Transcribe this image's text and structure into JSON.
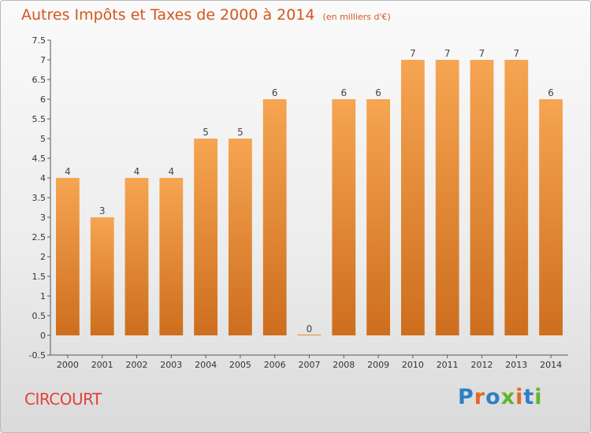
{
  "header": {
    "title": "Autres Impôts et Taxes de 2000 à 2014",
    "unit": "(en milliers d'€)"
  },
  "footer": {
    "commune": "CIRCOURT",
    "logo": "Proxiti"
  },
  "colors": {
    "title": "#d4571e",
    "commune": "#e0433f",
    "bar_top": "#f6a552",
    "bar_bottom": "#cd6e1e",
    "logo_letters": [
      "#2f7fc4",
      "#e3672a",
      "#2f7fc4",
      "#62b32e",
      "#e3672a",
      "#2f7fc4",
      "#62b32e"
    ]
  },
  "chart_data": {
    "type": "bar",
    "categories": [
      "2000",
      "2001",
      "2002",
      "2003",
      "2004",
      "2005",
      "2006",
      "2007",
      "2008",
      "2009",
      "2010",
      "2011",
      "2012",
      "2013",
      "2014"
    ],
    "values": [
      4,
      3,
      4,
      4,
      5,
      5,
      6,
      0,
      6,
      6,
      7,
      7,
      7,
      7,
      6
    ],
    "value_labels": [
      "4",
      "3",
      "4",
      "4",
      "5",
      "5",
      "6",
      "0",
      "6",
      "6",
      "7",
      "7",
      "7",
      "7",
      "6"
    ],
    "yticks": [
      "-0.5",
      "0",
      "0.5",
      "1",
      "1.5",
      "2",
      "2.5",
      "3",
      "3.5",
      "4",
      "4.5",
      "5",
      "5.5",
      "6",
      "6.5",
      "7",
      "7.5"
    ],
    "ylim": [
      -0.5,
      7.5
    ],
    "xlabel": "",
    "ylabel": "",
    "grid": false
  }
}
